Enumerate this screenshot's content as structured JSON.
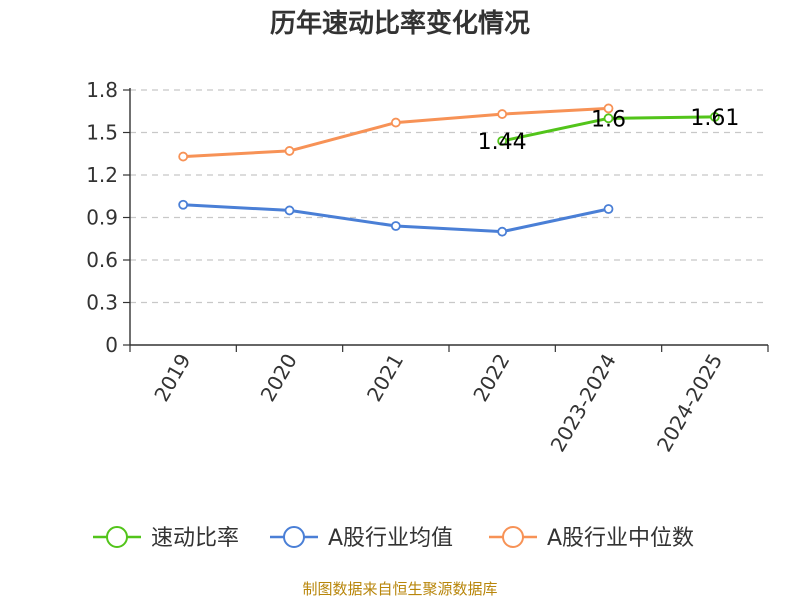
{
  "chart_data": {
    "type": "line",
    "title": "历年速动比率变化情况",
    "categories": [
      "2019",
      "2020",
      "2021",
      "2022",
      "2023-2024",
      "2024-2025"
    ],
    "ylim": [
      0,
      1.8
    ],
    "yticks": [
      "0",
      "0.3",
      "0.6",
      "0.9",
      "1.2",
      "1.5",
      "1.8"
    ],
    "grid": true,
    "legend_position": "bottom",
    "series": [
      {
        "name": "速动比率",
        "color": "#52c41a",
        "values": [
          null,
          null,
          null,
          1.44,
          1.6,
          1.61
        ],
        "labels": [
          null,
          null,
          null,
          "1.44",
          "1.6",
          "1.61"
        ]
      },
      {
        "name": "A股行业均值",
        "color": "#4a7fd6",
        "values": [
          0.99,
          0.95,
          0.84,
          0.8,
          0.96,
          null
        ]
      },
      {
        "name": "A股行业中位数",
        "color": "#f79256",
        "values": [
          1.33,
          1.37,
          1.57,
          1.63,
          1.67,
          null
        ]
      }
    ]
  },
  "source": "制图数据来自恒生聚源数据库"
}
